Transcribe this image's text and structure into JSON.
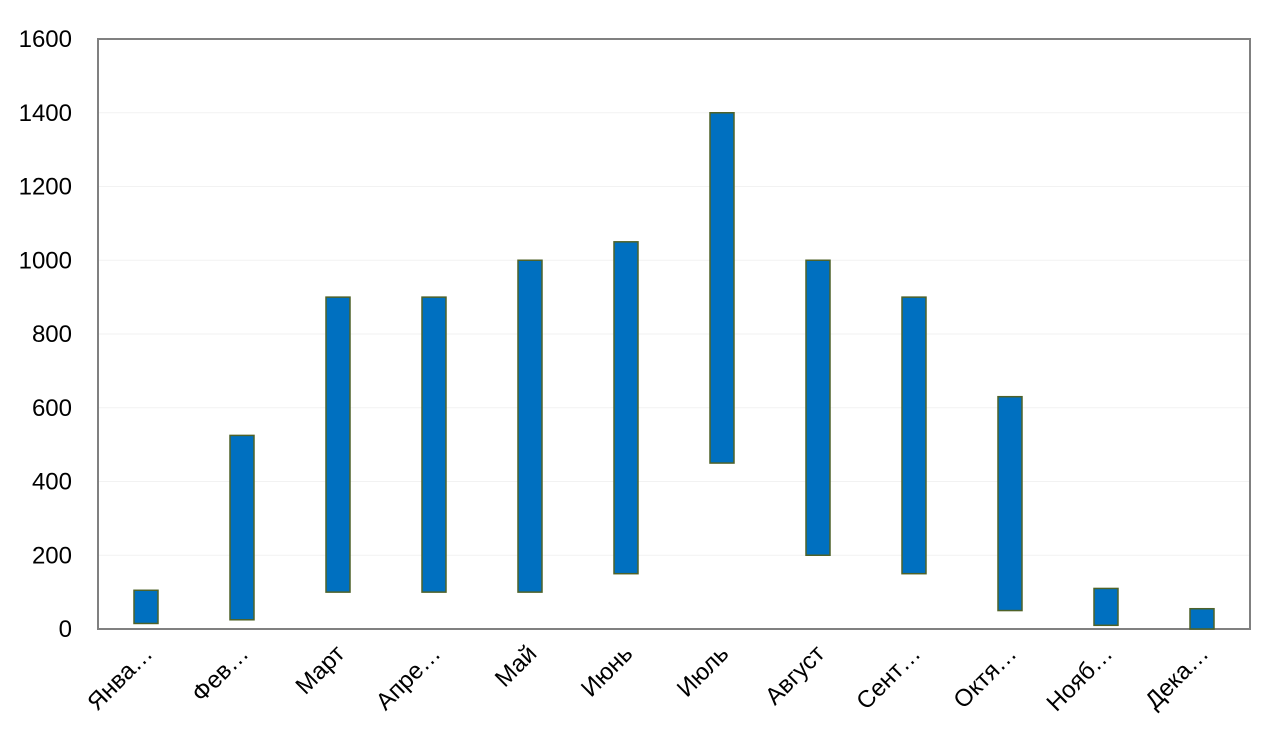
{
  "chart_data": {
    "type": "bar",
    "subtype": "floating-range",
    "categories": [
      "Янва…",
      "Фев…",
      "Март",
      "Апре…",
      "Май",
      "Июнь",
      "Июль",
      "Август",
      "Сент…",
      "Октя…",
      "Нояб…",
      "Дека…"
    ],
    "series": [
      {
        "low": [
          15,
          25,
          100,
          100,
          100,
          150,
          450,
          200,
          150,
          50,
          10,
          0
        ],
        "high": [
          105,
          525,
          900,
          900,
          1000,
          1050,
          1400,
          1000,
          900,
          630,
          110,
          55
        ]
      }
    ],
    "y_ticks": [
      "0",
      "200",
      "400",
      "600",
      "800",
      "1000",
      "1200",
      "1400",
      "1600"
    ],
    "ylim": [
      0,
      1600
    ],
    "title": "",
    "xlabel": "",
    "ylabel": "",
    "grid": true,
    "legend": "none",
    "colors": {
      "bar_fill": "#0070c0",
      "bar_stroke": "#4f6228",
      "axis": "#808080",
      "grid": "#f2f2f2",
      "plot_border": "#808080"
    }
  }
}
